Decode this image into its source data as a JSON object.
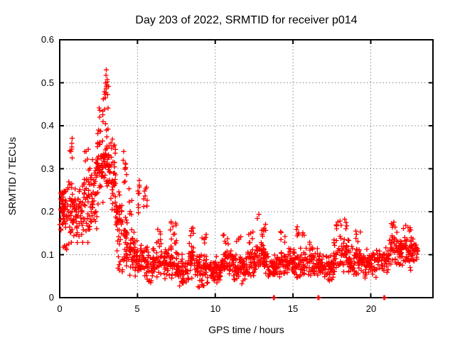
{
  "chart_data": {
    "type": "scatter",
    "title": "Day 203 of 2022, SRMTID for receiver p014",
    "xlabel": "GPS time / hours",
    "ylabel": "SRMTID / TECUs",
    "xlim": [
      0,
      24
    ],
    "ylim": [
      0,
      0.6
    ],
    "xticks": [
      0,
      5,
      10,
      15,
      20
    ],
    "yticks": [
      0,
      0.1,
      0.2,
      0.3,
      0.4,
      0.5,
      0.6
    ],
    "xtick_labels": [
      "0",
      "5",
      "10",
      "15",
      "20"
    ],
    "ytick_labels": [
      "0",
      "0.1",
      "0.2",
      "0.3",
      "0.4",
      "0.5",
      "0.6"
    ],
    "grid": true,
    "legend": "none",
    "marker": "plus",
    "series_color": "#ff0000",
    "point_bands": [
      [
        0.0,
        0.5,
        0.13,
        0.28,
        45
      ],
      [
        0.05,
        0.35,
        0.17,
        0.26,
        15
      ],
      [
        0.1,
        0.45,
        0.1,
        0.14,
        5
      ],
      [
        0.5,
        1.0,
        0.11,
        0.3,
        45
      ],
      [
        0.55,
        0.85,
        0.32,
        0.4,
        7
      ],
      [
        1.0,
        1.5,
        0.1,
        0.27,
        42
      ],
      [
        1.5,
        2.0,
        0.12,
        0.31,
        42
      ],
      [
        1.6,
        1.95,
        0.3,
        0.37,
        5
      ],
      [
        2.0,
        2.4,
        0.15,
        0.33,
        40
      ],
      [
        2.4,
        2.8,
        0.21,
        0.4,
        45
      ],
      [
        2.5,
        2.85,
        0.4,
        0.47,
        8
      ],
      [
        2.8,
        3.2,
        0.23,
        0.42,
        45
      ],
      [
        2.85,
        3.15,
        0.42,
        0.54,
        16
      ],
      [
        3.2,
        3.6,
        0.17,
        0.38,
        40
      ],
      [
        3.6,
        4.0,
        0.08,
        0.26,
        40
      ],
      [
        3.75,
        4.05,
        0.05,
        0.1,
        8
      ],
      [
        4.0,
        4.35,
        0.06,
        0.2,
        30
      ],
      [
        4.05,
        4.3,
        0.24,
        0.35,
        10
      ],
      [
        4.35,
        5.0,
        0.04,
        0.16,
        48
      ],
      [
        4.4,
        4.65,
        0.16,
        0.28,
        6
      ],
      [
        5.0,
        5.15,
        0.18,
        0.31,
        9
      ],
      [
        5.0,
        5.6,
        0.04,
        0.14,
        42
      ],
      [
        5.35,
        5.7,
        0.2,
        0.3,
        9
      ],
      [
        5.6,
        6.2,
        0.03,
        0.13,
        44
      ],
      [
        6.2,
        7.0,
        0.03,
        0.13,
        56
      ],
      [
        6.3,
        6.55,
        0.13,
        0.17,
        5
      ],
      [
        7.0,
        7.6,
        0.04,
        0.14,
        42
      ],
      [
        7.1,
        7.5,
        0.14,
        0.185,
        8
      ],
      [
        7.6,
        8.3,
        0.02,
        0.11,
        50
      ],
      [
        8.3,
        8.7,
        0.04,
        0.14,
        28
      ],
      [
        8.35,
        8.65,
        0.14,
        0.175,
        6
      ],
      [
        8.7,
        9.6,
        0.02,
        0.11,
        64
      ],
      [
        9.15,
        9.45,
        0.12,
        0.16,
        6
      ],
      [
        9.6,
        10.4,
        0.03,
        0.1,
        56
      ],
      [
        10.4,
        11.2,
        0.04,
        0.12,
        56
      ],
      [
        10.5,
        10.85,
        0.12,
        0.155,
        6
      ],
      [
        11.2,
        12.0,
        0.03,
        0.11,
        56
      ],
      [
        11.35,
        11.65,
        0.11,
        0.15,
        4
      ],
      [
        12.0,
        12.6,
        0.04,
        0.12,
        42
      ],
      [
        12.15,
        12.5,
        0.12,
        0.165,
        6
      ],
      [
        12.6,
        13.4,
        0.05,
        0.14,
        56
      ],
      [
        12.85,
        13.3,
        0.14,
        0.18,
        8
      ],
      [
        12.65,
        12.85,
        0.17,
        0.195,
        2
      ],
      [
        13.4,
        14.0,
        0.03,
        0.11,
        40
      ],
      [
        14.0,
        14.8,
        0.04,
        0.12,
        55
      ],
      [
        14.2,
        14.55,
        0.12,
        0.16,
        5
      ],
      [
        14.8,
        15.8,
        0.04,
        0.12,
        66
      ],
      [
        15.2,
        15.75,
        0.12,
        0.17,
        8
      ],
      [
        15.8,
        16.8,
        0.04,
        0.12,
        66
      ],
      [
        16.0,
        16.35,
        0.1,
        0.14,
        6
      ],
      [
        16.8,
        17.6,
        0.03,
        0.11,
        54
      ],
      [
        17.6,
        18.6,
        0.05,
        0.15,
        70
      ],
      [
        17.75,
        18.55,
        0.15,
        0.19,
        10
      ],
      [
        18.6,
        19.5,
        0.05,
        0.13,
        60
      ],
      [
        19.0,
        19.45,
        0.13,
        0.16,
        5
      ],
      [
        19.5,
        20.5,
        0.04,
        0.12,
        66
      ],
      [
        20.5,
        21.2,
        0.05,
        0.13,
        46
      ],
      [
        21.2,
        21.7,
        0.07,
        0.16,
        34
      ],
      [
        21.3,
        21.62,
        0.16,
        0.195,
        6
      ],
      [
        21.7,
        22.8,
        0.06,
        0.15,
        80
      ],
      [
        22.05,
        22.65,
        0.15,
        0.175,
        6
      ],
      [
        22.8,
        23.05,
        0.08,
        0.14,
        16
      ]
    ],
    "zero_points": [
      13.74,
      13.81,
      16.6,
      16.67,
      20.84,
      20.91
    ]
  },
  "colors": {
    "marker": "#ff0000",
    "grid": "#8a8a8a",
    "border": "#000000",
    "background": "#ffffff",
    "text": "#000000"
  }
}
